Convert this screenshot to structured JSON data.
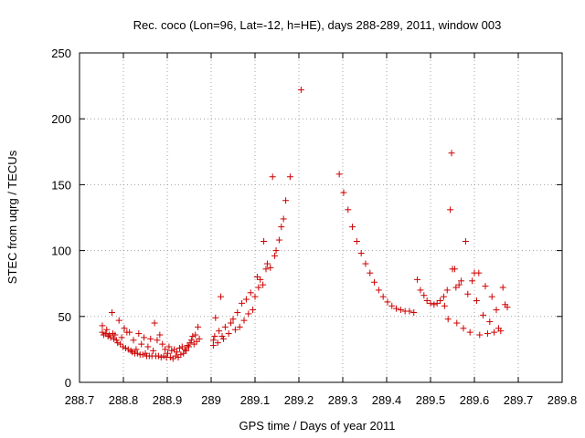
{
  "chart_data": {
    "type": "scatter",
    "title": "Rec. coco (Lon=96, Lat=-12, h=HE), days 288-289, 2011, window 003",
    "xlabel": "GPS time / Days of year 2011",
    "ylabel": "STEC from uqrg / TECUs",
    "xlim": [
      288.7,
      289.8
    ],
    "ylim": [
      0,
      250
    ],
    "xticks": [
      "288.7",
      "288.8",
      "288.9",
      "289",
      "289.1",
      "289.2",
      "289.3",
      "289.4",
      "289.5",
      "289.6",
      "289.7",
      "289.8"
    ],
    "yticks": [
      "0",
      "50",
      "100",
      "150",
      "200",
      "250"
    ],
    "grid": true,
    "marker": "+",
    "color": "#cc0000",
    "series": [
      {
        "points": [
          [
            288.752,
            43
          ],
          [
            288.752,
            38
          ],
          [
            288.755,
            36
          ],
          [
            288.76,
            37
          ],
          [
            288.762,
            40
          ],
          [
            288.765,
            35
          ],
          [
            288.768,
            36
          ],
          [
            288.771,
            34
          ],
          [
            288.774,
            53
          ],
          [
            288.776,
            37
          ],
          [
            288.778,
            33
          ],
          [
            288.781,
            36
          ],
          [
            288.784,
            32
          ],
          [
            288.787,
            30
          ],
          [
            288.79,
            47
          ],
          [
            288.793,
            29
          ],
          [
            288.796,
            34
          ],
          [
            288.799,
            27
          ],
          [
            288.802,
            41
          ],
          [
            288.805,
            26
          ],
          [
            288.808,
            38
          ],
          [
            288.811,
            25
          ],
          [
            288.814,
            38
          ],
          [
            288.817,
            24
          ],
          [
            288.82,
            23
          ],
          [
            288.823,
            32
          ],
          [
            288.826,
            22
          ],
          [
            288.829,
            25
          ],
          [
            288.832,
            22
          ],
          [
            288.835,
            37
          ],
          [
            288.838,
            21
          ],
          [
            288.841,
            29
          ],
          [
            288.844,
            21
          ],
          [
            288.847,
            34
          ],
          [
            288.85,
            22
          ],
          [
            288.853,
            20
          ],
          [
            288.856,
            27
          ],
          [
            288.859,
            20
          ],
          [
            288.862,
            33
          ],
          [
            288.865,
            20
          ],
          [
            288.868,
            24
          ],
          [
            288.871,
            45
          ],
          [
            288.874,
            20
          ],
          [
            288.877,
            32
          ],
          [
            288.88,
            20
          ],
          [
            288.883,
            36
          ],
          [
            288.886,
            19
          ],
          [
            288.889,
            29
          ],
          [
            288.892,
            20
          ],
          [
            288.895,
            25
          ],
          [
            288.898,
            19
          ],
          [
            288.901,
            22
          ],
          [
            288.904,
            27
          ],
          [
            288.907,
            19
          ],
          [
            288.91,
            24
          ],
          [
            288.913,
            18
          ],
          [
            288.916,
            25
          ],
          [
            288.919,
            20
          ],
          [
            288.922,
            23
          ],
          [
            288.925,
            19
          ],
          [
            288.928,
            26
          ],
          [
            288.931,
            21
          ],
          [
            288.934,
            27
          ],
          [
            288.937,
            22
          ],
          [
            288.94,
            25
          ],
          [
            288.943,
            24
          ],
          [
            288.946,
            28
          ],
          [
            288.949,
            27
          ],
          [
            288.952,
            30
          ],
          [
            288.955,
            32
          ],
          [
            288.958,
            35
          ],
          [
            288.961,
            29
          ],
          [
            288.964,
            36
          ],
          [
            288.967,
            31
          ],
          [
            288.97,
            42
          ],
          [
            288.973,
            33
          ],
          [
            289.005,
            28
          ],
          [
            289.005,
            32
          ],
          [
            289.008,
            35
          ],
          [
            289.01,
            49
          ],
          [
            289.015,
            30
          ],
          [
            289.018,
            39
          ],
          [
            289.022,
            65
          ],
          [
            289.025,
            35
          ],
          [
            289.028,
            33
          ],
          [
            289.032,
            42
          ],
          [
            289.04,
            37
          ],
          [
            289.045,
            45
          ],
          [
            289.05,
            48
          ],
          [
            289.055,
            40
          ],
          [
            289.06,
            53
          ],
          [
            289.065,
            42
          ],
          [
            289.07,
            60
          ],
          [
            289.075,
            47
          ],
          [
            289.08,
            63
          ],
          [
            289.085,
            52
          ],
          [
            289.09,
            68
          ],
          [
            289.095,
            55
          ],
          [
            289.1,
            65
          ],
          [
            289.105,
            80
          ],
          [
            289.108,
            72
          ],
          [
            289.112,
            78
          ],
          [
            289.118,
            74
          ],
          [
            289.12,
            107
          ],
          [
            289.125,
            86
          ],
          [
            289.128,
            90
          ],
          [
            289.135,
            87
          ],
          [
            289.14,
            156
          ],
          [
            289.145,
            96
          ],
          [
            289.148,
            100
          ],
          [
            289.155,
            108
          ],
          [
            289.16,
            118
          ],
          [
            289.165,
            124
          ],
          [
            289.17,
            138
          ],
          [
            289.18,
            156
          ],
          [
            289.205,
            222
          ],
          [
            289.292,
            158
          ],
          [
            289.302,
            144
          ],
          [
            289.312,
            131
          ],
          [
            289.322,
            118
          ],
          [
            289.332,
            107
          ],
          [
            289.342,
            98
          ],
          [
            289.352,
            90
          ],
          [
            289.362,
            83
          ],
          [
            289.372,
            76
          ],
          [
            289.382,
            70
          ],
          [
            289.392,
            65
          ],
          [
            289.402,
            61
          ],
          [
            289.412,
            58
          ],
          [
            289.422,
            56
          ],
          [
            289.432,
            55
          ],
          [
            289.442,
            54
          ],
          [
            289.452,
            54
          ],
          [
            289.462,
            53
          ],
          [
            289.47,
            78
          ],
          [
            289.477,
            70
          ],
          [
            289.485,
            66
          ],
          [
            289.492,
            62
          ],
          [
            289.5,
            60
          ],
          [
            289.508,
            59
          ],
          [
            289.515,
            60
          ],
          [
            289.522,
            62
          ],
          [
            289.53,
            65
          ],
          [
            289.532,
            58
          ],
          [
            289.538,
            70
          ],
          [
            289.54,
            48
          ],
          [
            289.545,
            131
          ],
          [
            289.548,
            174
          ],
          [
            289.55,
            86
          ],
          [
            289.555,
            86
          ],
          [
            289.558,
            72
          ],
          [
            289.56,
            45
          ],
          [
            289.565,
            74
          ],
          [
            289.57,
            77
          ],
          [
            289.575,
            41
          ],
          [
            289.58,
            107
          ],
          [
            289.585,
            67
          ],
          [
            289.59,
            38
          ],
          [
            289.595,
            77
          ],
          [
            289.6,
            83
          ],
          [
            289.605,
            62
          ],
          [
            289.61,
            83
          ],
          [
            289.612,
            36
          ],
          [
            289.62,
            51
          ],
          [
            289.625,
            73
          ],
          [
            289.63,
            37
          ],
          [
            289.635,
            46
          ],
          [
            289.64,
            65
          ],
          [
            289.645,
            38
          ],
          [
            289.65,
            55
          ],
          [
            289.655,
            41
          ],
          [
            289.66,
            39
          ],
          [
            289.665,
            72
          ],
          [
            289.67,
            59
          ],
          [
            289.675,
            57
          ]
        ]
      }
    ]
  }
}
